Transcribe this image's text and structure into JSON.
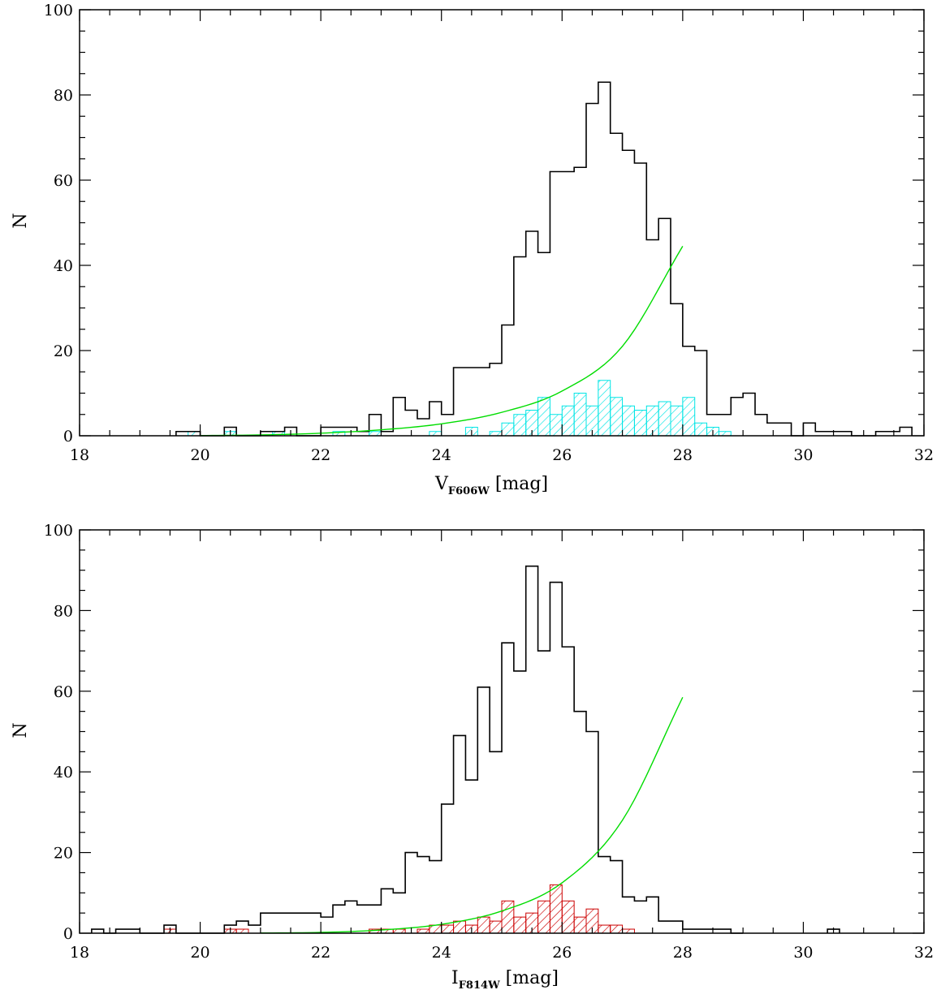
{
  "chart_data": [
    {
      "type": "histogram",
      "xlabel": {
        "main": "V",
        "sub": "F606W",
        "unit": "[mag]"
      },
      "ylabel": "N",
      "xlim": [
        18,
        32
      ],
      "ylim": [
        0,
        100
      ],
      "xticks": [
        18,
        20,
        22,
        24,
        26,
        28,
        30,
        32
      ],
      "yticks": [
        0,
        20,
        40,
        60,
        80,
        100
      ],
      "bin_width": 0.2,
      "colors": {
        "total": "#000000",
        "subset": "#00e5e5",
        "curve": "#00dd00"
      },
      "series": [
        {
          "style": "step",
          "points": [
            [
              19.6,
              1
            ],
            [
              19.8,
              1
            ],
            [
              20.0,
              0
            ],
            [
              20.2,
              0
            ],
            [
              20.4,
              2
            ],
            [
              20.6,
              0
            ],
            [
              20.8,
              0
            ],
            [
              21.0,
              1
            ],
            [
              21.2,
              1
            ],
            [
              21.4,
              2
            ],
            [
              21.6,
              0
            ],
            [
              21.8,
              0
            ],
            [
              22.0,
              2
            ],
            [
              22.2,
              2
            ],
            [
              22.4,
              2
            ],
            [
              22.6,
              1
            ],
            [
              22.8,
              5
            ],
            [
              23.0,
              1
            ],
            [
              23.2,
              9
            ],
            [
              23.4,
              6
            ],
            [
              23.6,
              4
            ],
            [
              23.8,
              8
            ],
            [
              24.0,
              5
            ],
            [
              24.2,
              16
            ],
            [
              24.4,
              16
            ],
            [
              24.6,
              16
            ],
            [
              24.8,
              17
            ],
            [
              25.0,
              26
            ],
            [
              25.2,
              42
            ],
            [
              25.4,
              48
            ],
            [
              25.6,
              43
            ],
            [
              25.8,
              62
            ],
            [
              26.0,
              62
            ],
            [
              26.2,
              63
            ],
            [
              26.4,
              78
            ],
            [
              26.6,
              83
            ],
            [
              26.8,
              71
            ],
            [
              27.0,
              67
            ],
            [
              27.2,
              64
            ],
            [
              27.4,
              46
            ],
            [
              27.6,
              51
            ],
            [
              27.8,
              31
            ],
            [
              28.0,
              21
            ],
            [
              28.2,
              20
            ],
            [
              28.4,
              5
            ],
            [
              28.6,
              5
            ],
            [
              28.8,
              9
            ],
            [
              29.0,
              10
            ],
            [
              29.2,
              5
            ],
            [
              29.4,
              3
            ],
            [
              29.6,
              3
            ],
            [
              29.8,
              0
            ],
            [
              30.0,
              3
            ],
            [
              30.2,
              1
            ],
            [
              30.4,
              1
            ],
            [
              30.6,
              1
            ],
            [
              30.8,
              0
            ],
            [
              31.0,
              0
            ],
            [
              31.2,
              1
            ],
            [
              31.4,
              1
            ],
            [
              31.6,
              2
            ]
          ]
        },
        {
          "style": "hatched",
          "points": [
            [
              19.8,
              1
            ],
            [
              20.4,
              1
            ],
            [
              21.2,
              1
            ],
            [
              22.2,
              1
            ],
            [
              22.8,
              1
            ],
            [
              23.8,
              1
            ],
            [
              24.4,
              2
            ],
            [
              24.8,
              1
            ],
            [
              25.0,
              3
            ],
            [
              25.2,
              5
            ],
            [
              25.4,
              6
            ],
            [
              25.6,
              9
            ],
            [
              25.8,
              5
            ],
            [
              26.0,
              7
            ],
            [
              26.2,
              10
            ],
            [
              26.4,
              7
            ],
            [
              26.6,
              13
            ],
            [
              26.8,
              9
            ],
            [
              27.0,
              7
            ],
            [
              27.2,
              6
            ],
            [
              27.4,
              7
            ],
            [
              27.6,
              8
            ],
            [
              27.8,
              7
            ],
            [
              28.0,
              9
            ],
            [
              28.2,
              3
            ],
            [
              28.4,
              2
            ],
            [
              28.6,
              1
            ]
          ]
        },
        {
          "style": "curve",
          "points": [
            [
              20.0,
              0.05
            ],
            [
              21.0,
              0.2
            ],
            [
              22.0,
              0.6
            ],
            [
              23.0,
              1.4
            ],
            [
              24.0,
              2.8
            ],
            [
              25.0,
              5.5
            ],
            [
              26.0,
              10.5
            ],
            [
              27.0,
              21
            ],
            [
              28.0,
              44.5
            ]
          ]
        }
      ]
    },
    {
      "type": "histogram",
      "xlabel": {
        "main": "I",
        "sub": "F814W",
        "unit": "[mag]"
      },
      "ylabel": "N",
      "xlim": [
        18,
        32
      ],
      "ylim": [
        0,
        100
      ],
      "xticks": [
        18,
        20,
        22,
        24,
        26,
        28,
        30,
        32
      ],
      "yticks": [
        0,
        20,
        40,
        60,
        80,
        100
      ],
      "bin_width": 0.2,
      "colors": {
        "total": "#000000",
        "subset": "#cc0000",
        "curve": "#00dd00"
      },
      "series": [
        {
          "style": "step",
          "points": [
            [
              18.2,
              1
            ],
            [
              18.4,
              0
            ],
            [
              18.6,
              1
            ],
            [
              18.8,
              1
            ],
            [
              19.0,
              0
            ],
            [
              19.2,
              0
            ],
            [
              19.4,
              2
            ],
            [
              19.6,
              0
            ],
            [
              19.8,
              0
            ],
            [
              20.0,
              0
            ],
            [
              20.2,
              0
            ],
            [
              20.4,
              2
            ],
            [
              20.6,
              3
            ],
            [
              20.8,
              2
            ],
            [
              21.0,
              5
            ],
            [
              21.2,
              5
            ],
            [
              21.4,
              5
            ],
            [
              21.6,
              5
            ],
            [
              21.8,
              5
            ],
            [
              22.0,
              4
            ],
            [
              22.2,
              7
            ],
            [
              22.4,
              8
            ],
            [
              22.6,
              7
            ],
            [
              22.8,
              7
            ],
            [
              23.0,
              11
            ],
            [
              23.2,
              10
            ],
            [
              23.4,
              20
            ],
            [
              23.6,
              19
            ],
            [
              23.8,
              18
            ],
            [
              24.0,
              32
            ],
            [
              24.2,
              49
            ],
            [
              24.4,
              38
            ],
            [
              24.6,
              61
            ],
            [
              24.8,
              45
            ],
            [
              25.0,
              72
            ],
            [
              25.2,
              65
            ],
            [
              25.4,
              91
            ],
            [
              25.6,
              70
            ],
            [
              25.8,
              87
            ],
            [
              26.0,
              71
            ],
            [
              26.2,
              55
            ],
            [
              26.4,
              50
            ],
            [
              26.6,
              19
            ],
            [
              26.8,
              18
            ],
            [
              27.0,
              9
            ],
            [
              27.2,
              8
            ],
            [
              27.4,
              9
            ],
            [
              27.6,
              3
            ],
            [
              27.8,
              3
            ],
            [
              28.0,
              1
            ],
            [
              28.2,
              1
            ],
            [
              28.4,
              1
            ],
            [
              28.6,
              1
            ],
            [
              28.8,
              0
            ],
            [
              30.4,
              1
            ]
          ]
        },
        {
          "style": "hatched",
          "points": [
            [
              19.4,
              1
            ],
            [
              20.4,
              1
            ],
            [
              20.6,
              1
            ],
            [
              22.8,
              1
            ],
            [
              23.0,
              1
            ],
            [
              23.2,
              1
            ],
            [
              23.6,
              1
            ],
            [
              23.8,
              2
            ],
            [
              24.0,
              2
            ],
            [
              24.2,
              3
            ],
            [
              24.4,
              2
            ],
            [
              24.6,
              4
            ],
            [
              24.8,
              3
            ],
            [
              25.0,
              8
            ],
            [
              25.2,
              4
            ],
            [
              25.4,
              5
            ],
            [
              25.6,
              8
            ],
            [
              25.8,
              12
            ],
            [
              26.0,
              8
            ],
            [
              26.2,
              4
            ],
            [
              26.4,
              6
            ],
            [
              26.6,
              2
            ],
            [
              26.8,
              2
            ],
            [
              27.0,
              1
            ]
          ]
        },
        {
          "style": "curve",
          "points": [
            [
              21.0,
              0.05
            ],
            [
              22.0,
              0.2
            ],
            [
              23.0,
              0.8
            ],
            [
              24.0,
              2.2
            ],
            [
              25.0,
              5.5
            ],
            [
              26.0,
              12.5
            ],
            [
              27.0,
              28
            ],
            [
              28.0,
              58.5
            ]
          ]
        }
      ]
    }
  ]
}
